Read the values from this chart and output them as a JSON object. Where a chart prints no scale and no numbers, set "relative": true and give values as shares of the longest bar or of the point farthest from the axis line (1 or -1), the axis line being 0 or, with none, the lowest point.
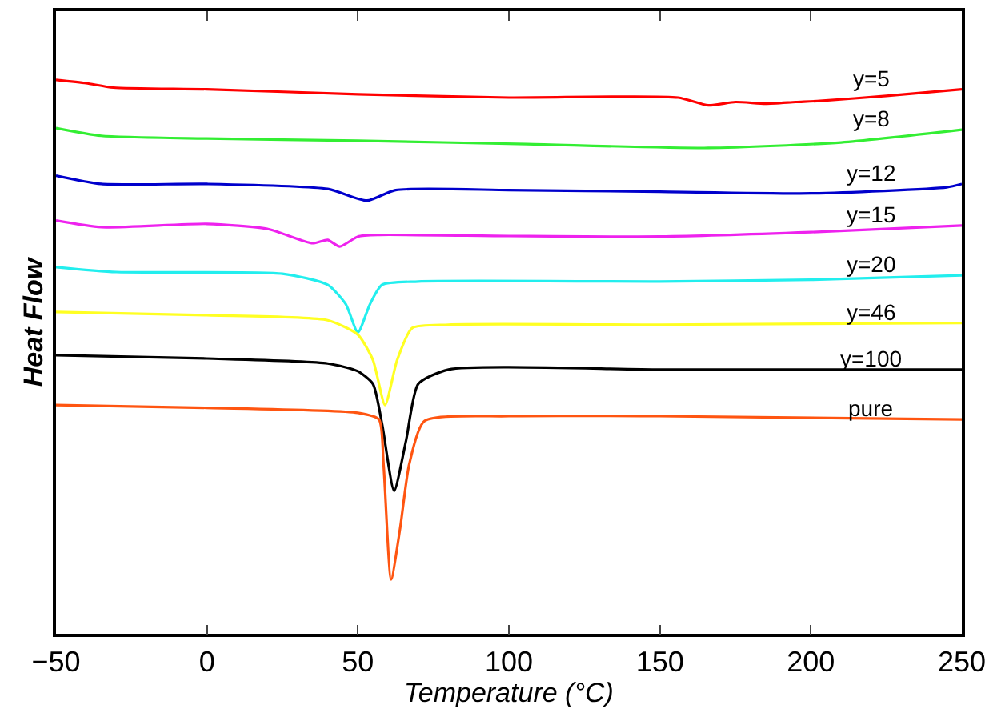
{
  "chart_data": {
    "type": "line",
    "relative": true,
    "xlabel": "Temperature (°C)",
    "ylabel": "Heat Flow",
    "xlim": [
      -50,
      250
    ],
    "xticks": [
      {
        "value": -50,
        "label": "−50"
      },
      0,
      50,
      100,
      150,
      200,
      250
    ],
    "grid": false,
    "legend": false,
    "line_style": "solid",
    "marker": "none",
    "series": [
      {
        "name": "y=5",
        "color": "#ff0000",
        "x": [
          -50,
          -40,
          -31,
          0,
          50,
          100,
          156,
          166,
          175,
          185,
          195,
          203,
          225,
          250
        ],
        "values": [
          1.0,
          0.994,
          0.986,
          0.983,
          0.974,
          0.968,
          0.968,
          0.954,
          0.96,
          0.957,
          0.96,
          0.962,
          0.971,
          0.983
        ]
      },
      {
        "name": "y=8",
        "color": "#33ee33",
        "x": [
          -50,
          -35,
          0,
          50,
          106,
          166,
          210,
          250
        ],
        "values": [
          0.913,
          0.899,
          0.894,
          0.89,
          0.884,
          0.877,
          0.887,
          0.91
        ]
      },
      {
        "name": "y=12",
        "color": "#0000cc",
        "x": [
          -50,
          -35,
          0,
          40,
          53,
          62.5,
          100,
          150,
          200,
          245,
          250
        ],
        "values": [
          0.827,
          0.812,
          0.812,
          0.803,
          0.782,
          0.801,
          0.801,
          0.798,
          0.795,
          0.806,
          0.812
        ]
      },
      {
        "name": "y=15",
        "color": "#ee22ee",
        "x": [
          -50,
          -35,
          0,
          20,
          35,
          40,
          44,
          50,
          57,
          100,
          150,
          200,
          250
        ],
        "values": [
          0.746,
          0.734,
          0.74,
          0.731,
          0.705,
          0.711,
          0.699,
          0.717,
          0.72,
          0.718,
          0.717,
          0.725,
          0.737
        ]
      },
      {
        "name": "y=20",
        "color": "#22eeee",
        "x": [
          -50,
          -30,
          25,
          40,
          46,
          50,
          54,
          58,
          70,
          150,
          200,
          250
        ],
        "values": [
          0.662,
          0.653,
          0.65,
          0.63,
          0.595,
          0.544,
          0.595,
          0.63,
          0.636,
          0.636,
          0.639,
          0.647
        ]
      },
      {
        "name": "y=46",
        "color": "#ffff22",
        "x": [
          -50,
          0,
          40,
          50,
          55,
          59,
          63,
          68,
          80,
          150,
          250
        ],
        "values": [
          0.581,
          0.575,
          0.566,
          0.54,
          0.494,
          0.413,
          0.494,
          0.552,
          0.558,
          0.558,
          0.561
        ]
      },
      {
        "name": "y=100",
        "color": "#000000",
        "x": [
          -50,
          0,
          40,
          50,
          55,
          58,
          62,
          66,
          70,
          80,
          150,
          250
        ],
        "values": [
          0.503,
          0.497,
          0.488,
          0.474,
          0.451,
          0.379,
          0.258,
          0.35,
          0.451,
          0.477,
          0.477,
          0.477
        ]
      },
      {
        "name": "pure",
        "color": "#ff5511",
        "x": [
          -50,
          0,
          50,
          57,
          58.5,
          61,
          64,
          67,
          72,
          100,
          150,
          250
        ],
        "values": [
          0.413,
          0.408,
          0.399,
          0.387,
          0.306,
          0.098,
          0.191,
          0.306,
          0.384,
          0.393,
          0.393,
          0.387
        ]
      }
    ]
  }
}
